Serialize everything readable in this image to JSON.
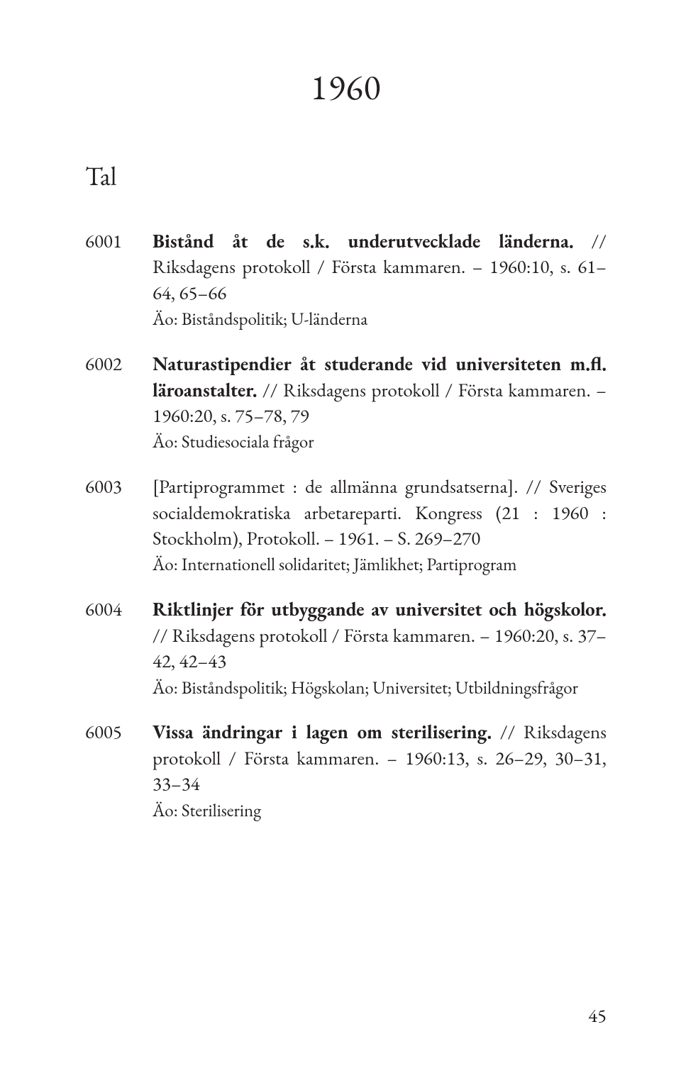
{
  "page": {
    "year": "1960",
    "section": "Tal",
    "page_number": "45",
    "text_color": "#231f20",
    "background_color": "#ffffff"
  },
  "entries": [
    {
      "num": "6001",
      "title": "Bistånd åt de s.k. underutvecklade länderna.",
      "rest": " // Riksdagens protokoll / Första kammaren. – 1960:10, s. 61–64, 65–66",
      "meta": "Äo: Biståndspolitik; U-länderna"
    },
    {
      "num": "6002",
      "title": "Naturastipendier åt studerande vid universiteten m.fl. läroanstalter.",
      "rest": " // Riksdagens protokoll / Första kammaren. – 1960:20, s. 75–78, 79",
      "meta": "Äo: Studiesociala frågor"
    },
    {
      "num": "6003",
      "title": "",
      "rest": "[Partiprogrammet : de allmänna grundsatserna]. // Sveriges socialdemokratiska arbetareparti. Kongress (21 : 1960 : Stockholm), Protokoll. – 1961. – S. 269–270",
      "meta": "Äo: Internationell solidaritet; Jämlikhet; Partiprogram"
    },
    {
      "num": "6004",
      "title": "Riktlinjer för utbyggande av universitet och högskolor.",
      "rest": " // Riksdagens protokoll / Första kammaren. – 1960:20, s. 37–42, 42–43",
      "meta": "Äo: Biståndspolitik; Högskolan; Universitet; Utbildningsfrågor"
    },
    {
      "num": "6005",
      "title": "Vissa ändringar i lagen om sterilisering.",
      "rest": " // Riksdagens protokoll / Första kammaren. – 1960:13, s. 26–29, 30–31, 33–34",
      "meta": "Äo: Sterilisering"
    }
  ]
}
